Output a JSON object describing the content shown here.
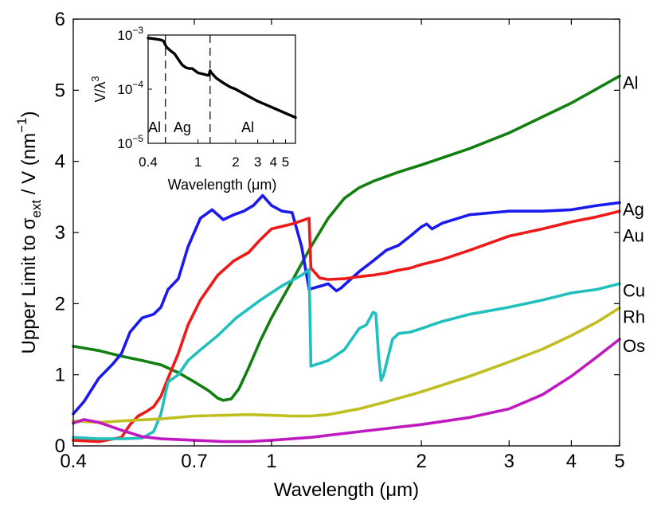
{
  "chart_data": {
    "type": "line",
    "xscale": "log",
    "xlabel": "Wavelength (μm)",
    "ylabel_parts": {
      "pre": "Upper Limit to σ",
      "sub": "ext",
      "mid": " / V (nm",
      "sup": "−1",
      "post": ")"
    },
    "xlim": [
      0.4,
      5
    ],
    "ylim": [
      0,
      6
    ],
    "xticks": [
      0.4,
      0.7,
      1,
      2,
      3,
      4,
      5
    ],
    "xtick_labels": [
      "0.4",
      "0.7",
      "1",
      "2",
      "3",
      "4",
      "5"
    ],
    "yticks": [
      0,
      1,
      2,
      3,
      4,
      5,
      6
    ],
    "ytick_labels": [
      "0",
      "1",
      "2",
      "3",
      "4",
      "5",
      "6"
    ],
    "series": [
      {
        "name": "Al",
        "color": "#118011",
        "x": [
          0.4,
          0.45,
          0.5,
          0.55,
          0.6,
          0.65,
          0.7,
          0.75,
          0.78,
          0.8,
          0.83,
          0.86,
          0.9,
          0.95,
          1.0,
          1.1,
          1.2,
          1.3,
          1.4,
          1.5,
          1.6,
          1.8,
          2.0,
          2.5,
          3.0,
          4.0,
          5.0
        ],
        "y": [
          1.4,
          1.34,
          1.26,
          1.2,
          1.14,
          1.03,
          0.9,
          0.77,
          0.67,
          0.64,
          0.66,
          0.8,
          1.1,
          1.48,
          1.8,
          2.32,
          2.8,
          3.2,
          3.48,
          3.63,
          3.72,
          3.85,
          3.95,
          4.18,
          4.4,
          4.82,
          5.2
        ]
      },
      {
        "name": "Ag",
        "color": "#1a1aee",
        "x": [
          0.4,
          0.42,
          0.45,
          0.48,
          0.5,
          0.52,
          0.55,
          0.58,
          0.6,
          0.62,
          0.65,
          0.68,
          0.72,
          0.76,
          0.8,
          0.84,
          0.88,
          0.92,
          0.96,
          1.0,
          1.05,
          1.1,
          1.15,
          1.19,
          1.2,
          1.26,
          1.3,
          1.35,
          1.38,
          1.42,
          1.5,
          1.6,
          1.7,
          1.8,
          1.9,
          2.0,
          2.05,
          2.1,
          2.2,
          2.5,
          3.0,
          3.5,
          4.0,
          4.5,
          5.0
        ],
        "y": [
          0.45,
          0.62,
          0.95,
          1.15,
          1.3,
          1.6,
          1.8,
          1.85,
          1.95,
          2.2,
          2.35,
          2.8,
          3.2,
          3.32,
          3.18,
          3.25,
          3.3,
          3.38,
          3.52,
          3.38,
          3.3,
          3.28,
          2.8,
          2.2,
          2.21,
          2.25,
          2.28,
          2.18,
          2.22,
          2.3,
          2.45,
          2.6,
          2.75,
          2.82,
          2.95,
          3.08,
          3.12,
          3.05,
          3.13,
          3.25,
          3.3,
          3.3,
          3.32,
          3.38,
          3.42
        ]
      },
      {
        "name": "Au",
        "color": "#ee1a1a",
        "x": [
          0.4,
          0.45,
          0.5,
          0.52,
          0.54,
          0.56,
          0.58,
          0.6,
          0.62,
          0.65,
          0.68,
          0.72,
          0.78,
          0.84,
          0.9,
          0.95,
          1.0,
          1.1,
          1.19,
          1.2,
          1.25,
          1.3,
          1.4,
          1.5,
          1.6,
          1.7,
          1.8,
          1.9,
          2.0,
          2.2,
          2.5,
          3.0,
          3.5,
          4.0,
          4.5,
          5.0
        ],
        "y": [
          0.08,
          0.06,
          0.12,
          0.3,
          0.42,
          0.48,
          0.55,
          0.7,
          0.95,
          1.3,
          1.7,
          2.05,
          2.4,
          2.6,
          2.72,
          2.9,
          3.05,
          3.12,
          3.2,
          2.5,
          2.36,
          2.34,
          2.35,
          2.38,
          2.4,
          2.43,
          2.47,
          2.5,
          2.55,
          2.62,
          2.75,
          2.95,
          3.05,
          3.15,
          3.22,
          3.3
        ]
      },
      {
        "name": "Cu",
        "color": "#22bfbf",
        "x": [
          0.4,
          0.45,
          0.5,
          0.55,
          0.58,
          0.6,
          0.62,
          0.65,
          0.68,
          0.72,
          0.78,
          0.85,
          0.95,
          1.05,
          1.15,
          1.19,
          1.2,
          1.3,
          1.4,
          1.5,
          1.55,
          1.6,
          1.62,
          1.64,
          1.66,
          1.68,
          1.7,
          1.75,
          1.8,
          1.9,
          2.0,
          2.2,
          2.5,
          3.0,
          3.5,
          4.0,
          4.5,
          5.0
        ],
        "y": [
          0.12,
          0.1,
          0.1,
          0.11,
          0.2,
          0.45,
          0.9,
          1.0,
          1.2,
          1.35,
          1.55,
          1.8,
          2.05,
          2.25,
          2.4,
          2.48,
          1.12,
          1.2,
          1.35,
          1.65,
          1.7,
          1.88,
          1.86,
          1.3,
          0.92,
          1.0,
          1.15,
          1.5,
          1.58,
          1.6,
          1.65,
          1.75,
          1.85,
          1.95,
          2.05,
          2.15,
          2.2,
          2.28
        ]
      },
      {
        "name": "Rh",
        "color": "#bfbf22",
        "x": [
          0.4,
          0.45,
          0.5,
          0.6,
          0.7,
          0.8,
          0.9,
          1.0,
          1.1,
          1.2,
          1.3,
          1.5,
          1.7,
          2.0,
          2.5,
          3.0,
          3.5,
          4.0,
          4.5,
          5.0
        ],
        "y": [
          0.35,
          0.33,
          0.35,
          0.38,
          0.42,
          0.43,
          0.44,
          0.43,
          0.42,
          0.42,
          0.44,
          0.52,
          0.62,
          0.76,
          0.98,
          1.18,
          1.36,
          1.55,
          1.74,
          1.94
        ]
      },
      {
        "name": "Os",
        "color": "#bf1abf",
        "x": [
          0.4,
          0.42,
          0.45,
          0.5,
          0.55,
          0.6,
          0.7,
          0.8,
          0.9,
          1.0,
          1.2,
          1.5,
          2.0,
          2.5,
          3.0,
          3.5,
          4.0,
          4.5,
          5.0
        ],
        "y": [
          0.32,
          0.37,
          0.33,
          0.22,
          0.13,
          0.1,
          0.08,
          0.06,
          0.06,
          0.08,
          0.12,
          0.2,
          0.3,
          0.4,
          0.52,
          0.72,
          0.98,
          1.25,
          1.5
        ]
      }
    ],
    "inset": {
      "type": "line",
      "xscale": "log",
      "yscale": "log",
      "xlabel": "Wavelength (μm)",
      "ylabel_parts": {
        "pre": "V/λ",
        "sup": "3"
      },
      "xlim": [
        0.4,
        6
      ],
      "ylim_exponents": [
        -5,
        -3
      ],
      "xticks": [
        0.4,
        1,
        2,
        3,
        4,
        5
      ],
      "xtick_labels": [
        "0.4",
        "1",
        "2",
        "3",
        "4",
        "5"
      ],
      "yticks": [
        {
          "base": "10",
          "exp": "−5",
          "value": 1e-05
        },
        {
          "base": "10",
          "exp": "−4",
          "value": 0.0001
        },
        {
          "base": "10",
          "exp": "−3",
          "value": 0.001
        }
      ],
      "dividers": [
        0.55,
        1.25
      ],
      "region_labels": [
        {
          "text": "Al",
          "x": 0.45
        },
        {
          "text": "Ag",
          "x": 0.75
        },
        {
          "text": "Al",
          "x": 2.5
        }
      ],
      "series": [
        {
          "name": "V/λ³",
          "color": "#000000",
          "x": [
            0.4,
            0.45,
            0.5,
            0.53,
            0.56,
            0.6,
            0.65,
            0.7,
            0.75,
            0.8,
            0.85,
            0.9,
            1.0,
            1.1,
            1.2,
            1.22,
            1.25,
            1.28,
            1.4,
            1.6,
            1.8,
            2.0,
            2.5,
            3.0,
            4.0,
            5.0,
            6.0
          ],
          "y": [
            0.00088,
            0.00085,
            0.00082,
            0.00078,
            0.0006,
            0.00052,
            0.00045,
            0.00035,
            0.00028,
            0.00025,
            0.00024,
            0.00024,
            0.0002,
            0.00019,
            0.00018,
            0.00018,
            0.00022,
            0.0002,
            0.00016,
            0.00013,
            0.00011,
            0.0001,
            7.5e-05,
            6e-05,
            4.5e-05,
            3.6e-05,
            3e-05
          ]
        }
      ]
    }
  }
}
